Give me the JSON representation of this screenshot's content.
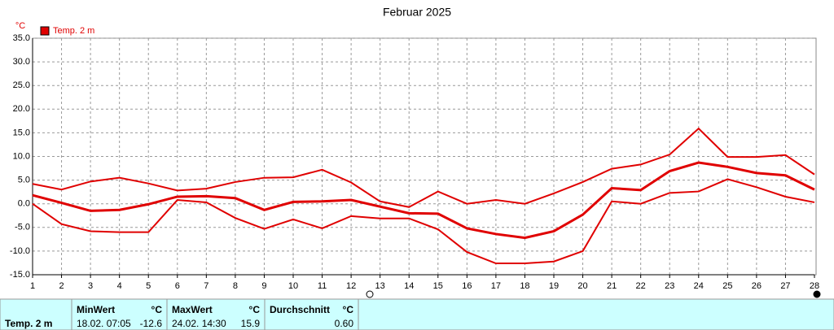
{
  "chart_data": {
    "type": "line",
    "title": "Februar 2025",
    "y_unit": "°C",
    "x": [
      1,
      2,
      3,
      4,
      5,
      6,
      7,
      8,
      9,
      10,
      11,
      12,
      13,
      14,
      15,
      16,
      17,
      18,
      19,
      20,
      21,
      22,
      23,
      24,
      25,
      26,
      27,
      28
    ],
    "xlim": [
      1,
      28
    ],
    "xticks": [
      1,
      2,
      3,
      4,
      5,
      6,
      7,
      8,
      9,
      10,
      11,
      12,
      13,
      14,
      15,
      16,
      17,
      18,
      19,
      20,
      21,
      22,
      23,
      24,
      25,
      26,
      27,
      28
    ],
    "ylim": [
      -15,
      35
    ],
    "yticks": [
      {
        "value": -15,
        "label": "-15.0"
      },
      {
        "value": -10,
        "label": "-10.0"
      },
      {
        "value": -5,
        "label": "-5.0"
      },
      {
        "value": 0,
        "label": "0.0"
      },
      {
        "value": 5,
        "label": "5.0"
      },
      {
        "value": 10,
        "label": "10.0"
      },
      {
        "value": 15,
        "label": "15.0"
      },
      {
        "value": 20,
        "label": "20.0"
      },
      {
        "value": 25,
        "label": "25.0"
      },
      {
        "value": 30,
        "label": "30.0"
      },
      {
        "value": 35,
        "label": "35.0"
      }
    ],
    "grid": true,
    "legend": "top-left",
    "series": [
      {
        "name": "Temp. 2 m",
        "color": "#e00000",
        "values": [
          1.8,
          0.2,
          -1.5,
          -1.3,
          -0.1,
          1.5,
          1.6,
          1.2,
          -1.3,
          0.4,
          0.5,
          0.8,
          -0.6,
          -2.0,
          -2.1,
          -5.2,
          -6.4,
          -7.2,
          -5.8,
          -2.3,
          3.3,
          2.9,
          6.9,
          8.7,
          7.8,
          6.5,
          6.0,
          3.0
        ]
      },
      {
        "color": "#e00000",
        "values": [
          4.2,
          3.0,
          4.7,
          5.5,
          4.3,
          2.8,
          3.2,
          4.6,
          5.5,
          5.6,
          7.2,
          4.5,
          0.5,
          -0.7,
          2.6,
          0.0,
          0.8,
          0.0,
          2.2,
          4.6,
          7.4,
          8.3,
          10.4,
          15.9,
          9.9,
          9.9,
          10.3,
          6.2
        ]
      },
      {
        "color": "#e00000",
        "values": [
          0.0,
          -4.3,
          -5.8,
          -6.0,
          -6.0,
          0.8,
          0.3,
          -3.0,
          -5.3,
          -3.3,
          -5.2,
          -2.6,
          -3.1,
          -3.1,
          -5.4,
          -10.2,
          -12.6,
          -12.6,
          -12.2,
          -10.0,
          0.5,
          0.0,
          2.3,
          2.6,
          5.2,
          3.5,
          1.5,
          0.3
        ]
      }
    ]
  },
  "table": {
    "label": "Temp. 2 m",
    "columns": [
      {
        "title": "MinWert",
        "unit": "°C",
        "time": "18.02. 07:05",
        "value": "-12.6"
      },
      {
        "title": "MaxWert",
        "unit": "°C",
        "time": "24.02. 14:30",
        "value": "15.9"
      },
      {
        "title": "Durchschnitt",
        "unit": "°C",
        "value": "0.60"
      }
    ]
  }
}
